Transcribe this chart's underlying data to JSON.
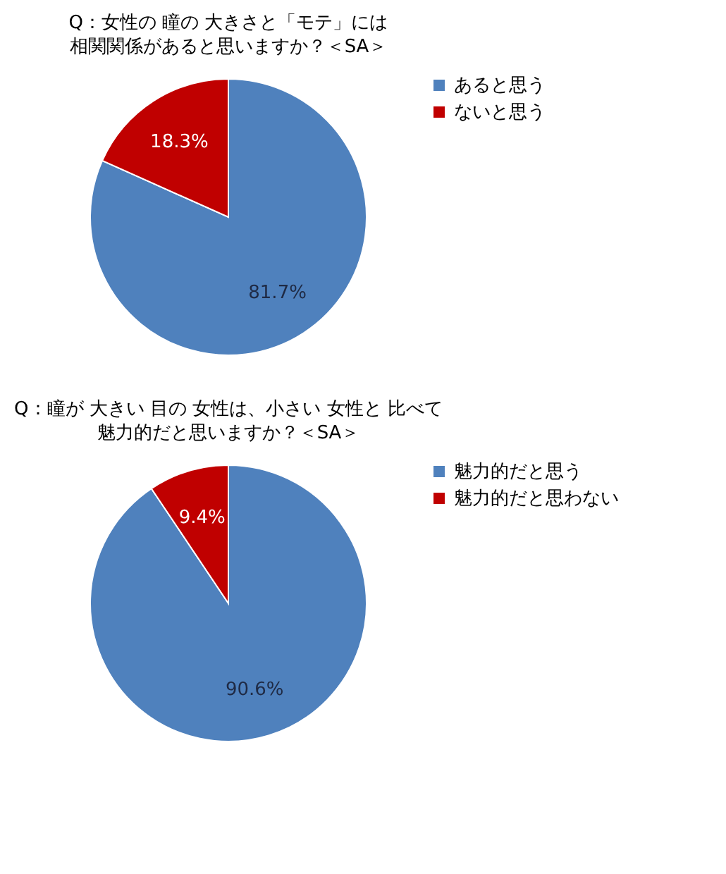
{
  "chart_data": [
    {
      "type": "pie",
      "title": "Q：女性の 瞳の 大きさと「モテ」には",
      "subtitle": "相関関係があると思いますか？＜SA＞",
      "categories": [
        "あると思う",
        "ないと思う"
      ],
      "values": [
        81.7,
        18.3
      ],
      "colors": [
        "#4f81bd",
        "#c00000"
      ],
      "value_labels": [
        "81.7%",
        "18.3%"
      ],
      "legend": "right"
    },
    {
      "type": "pie",
      "title": "Q：瞳が 大きい 目の 女性は、小さい 女性と 比べて",
      "subtitle": "魅力的だと思いますか？＜SA＞",
      "categories": [
        "魅力的だと思う",
        "魅力的だと思わない"
      ],
      "values": [
        90.6,
        9.4
      ],
      "colors": [
        "#4f81bd",
        "#c00000"
      ],
      "value_labels": [
        "90.6%",
        "9.4%"
      ],
      "legend": "right"
    }
  ]
}
